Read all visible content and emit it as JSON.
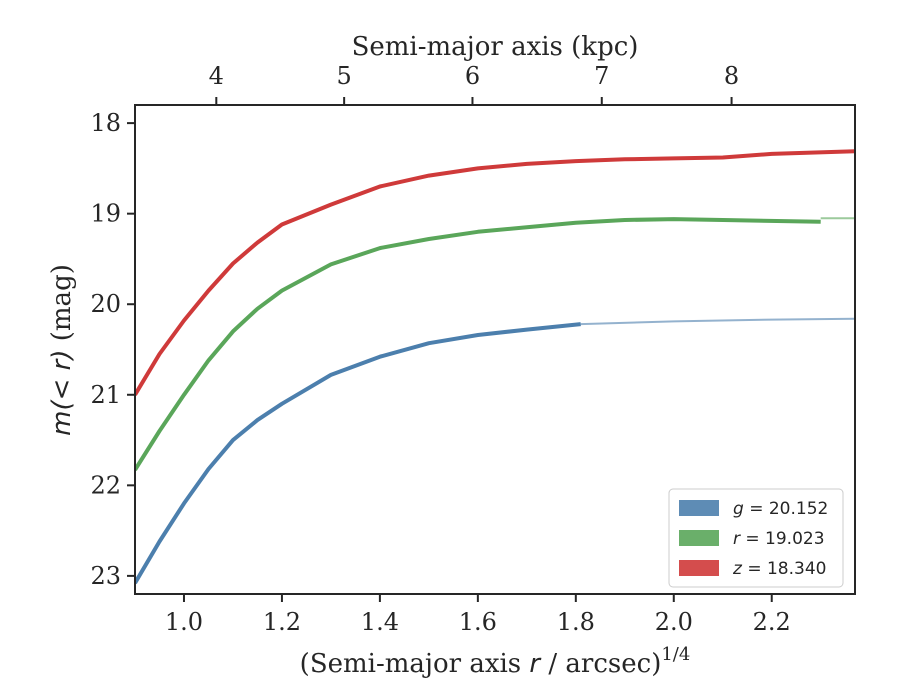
{
  "chart_data": {
    "type": "line",
    "xlabel": "(Semi-major axis r / arcsec)^{1/4}",
    "xlabel_parts": {
      "pre": "(Semi-major axis ",
      "var": "r",
      "post": " / arcsec)",
      "sup": "1/4"
    },
    "ylabel": "m(< r) (mag)",
    "ylabel_parts": {
      "pre": "m(< r)",
      "post": " (mag)"
    },
    "top_xlabel": "Semi-major axis (kpc)",
    "xlim": [
      0.9,
      2.37
    ],
    "ylim": [
      23.2,
      17.8
    ],
    "y_inverted": true,
    "xticks": [
      1.0,
      1.2,
      1.4,
      1.6,
      1.8,
      2.0,
      2.2
    ],
    "xtick_labels": [
      "1.0",
      "1.2",
      "1.4",
      "1.6",
      "1.8",
      "2.0",
      "2.2"
    ],
    "yticks": [
      18,
      19,
      20,
      21,
      22,
      23
    ],
    "ytick_labels": [
      "18",
      "19",
      "20",
      "21",
      "22",
      "23"
    ],
    "top_ticks": [
      {
        "label": "4",
        "x": 1.066
      },
      {
        "label": "5",
        "x": 1.327
      },
      {
        "label": "6",
        "x": 1.589
      },
      {
        "label": "7",
        "x": 1.853
      },
      {
        "label": "8",
        "x": 2.118
      }
    ],
    "grid": false,
    "legend_position": "lower-right",
    "series": [
      {
        "name": "g = 20.152",
        "legend_var": "g",
        "legend_value": "20.152",
        "color": "#4c7fad",
        "x": [
          0.9,
          0.95,
          1.0,
          1.05,
          1.1,
          1.15,
          1.2,
          1.3,
          1.4,
          1.5,
          1.6,
          1.7,
          1.81
        ],
        "y": [
          23.08,
          22.62,
          22.2,
          21.82,
          21.5,
          21.28,
          21.1,
          20.78,
          20.58,
          20.43,
          20.34,
          20.28,
          20.22
        ],
        "ext_x": [
          1.81,
          2.0,
          2.2,
          2.37
        ],
        "ext_y": [
          20.22,
          20.19,
          20.17,
          20.16
        ]
      },
      {
        "name": "r = 19.023",
        "legend_var": "r",
        "legend_value": "19.023",
        "color": "#5aa65a",
        "x": [
          0.9,
          0.95,
          1.0,
          1.05,
          1.1,
          1.15,
          1.2,
          1.3,
          1.4,
          1.5,
          1.6,
          1.7,
          1.8,
          1.9,
          2.0,
          2.1,
          2.3
        ],
        "y": [
          21.83,
          21.4,
          21.0,
          20.62,
          20.3,
          20.05,
          19.85,
          19.56,
          19.38,
          19.28,
          19.2,
          19.15,
          19.1,
          19.07,
          19.06,
          19.07,
          19.09
        ],
        "ext_x": [
          2.3,
          2.37
        ],
        "ext_y": [
          19.05,
          19.05
        ]
      },
      {
        "name": "z = 18.340",
        "legend_var": "z",
        "legend_value": "18.340",
        "color": "#cf3a3a",
        "x": [
          0.9,
          0.95,
          1.0,
          1.05,
          1.1,
          1.15,
          1.2,
          1.3,
          1.4,
          1.5,
          1.6,
          1.7,
          1.8,
          1.9,
          2.0,
          2.1,
          2.2,
          2.37
        ],
        "y": [
          21.0,
          20.55,
          20.18,
          19.85,
          19.55,
          19.32,
          19.12,
          18.9,
          18.7,
          18.58,
          18.5,
          18.45,
          18.42,
          18.4,
          18.39,
          18.38,
          18.34,
          18.31
        ],
        "ext_x": [],
        "ext_y": []
      }
    ]
  }
}
